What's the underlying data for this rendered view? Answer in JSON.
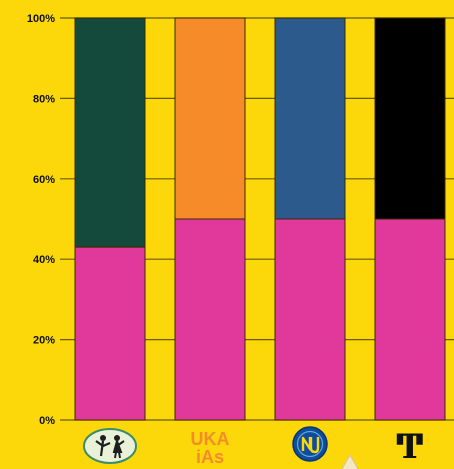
{
  "chart_data": {
    "type": "bar",
    "stacked": true,
    "categories": [
      "logo-dancers",
      "logo-ukaias",
      "logo-nu",
      "logo-t"
    ],
    "series": [
      {
        "values": [
          43,
          50,
          50,
          50
        ]
      },
      {
        "values": [
          57,
          50,
          50,
          50
        ]
      }
    ],
    "bar_colors": {
      "bottom": [
        "#E0389B",
        "#E0389B",
        "#E0389B",
        "#E0389B"
      ],
      "top": [
        "#134A3C",
        "#F68B2A",
        "#2C5A8C",
        "#000000"
      ]
    },
    "y_ticks": [
      "0%",
      "20%",
      "40%",
      "60%",
      "80%",
      "100%"
    ],
    "ylim": [
      0,
      100
    ],
    "grid": true,
    "background": "#FCD80A",
    "gridline_color": "#3A3200",
    "bar_outline_color": "#3A2A00",
    "logo_label_ukaias": [
      "UKA",
      "iAs"
    ],
    "logo_label_t": "Ͳ"
  }
}
